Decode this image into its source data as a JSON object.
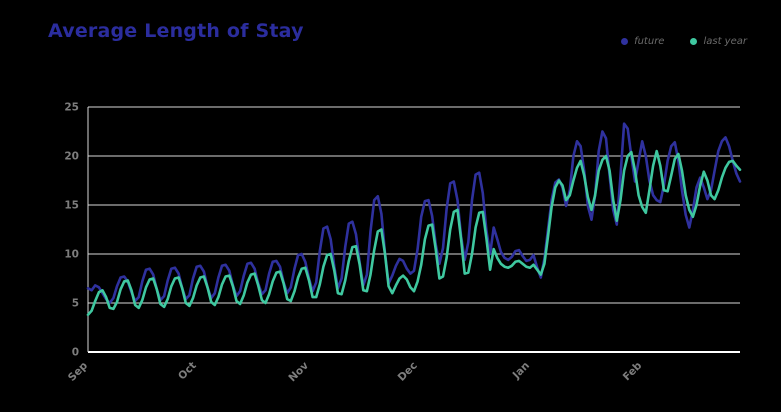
{
  "header": {
    "title": "Average Length of Stay"
  },
  "colors": {
    "background": "#000000",
    "title": "#2b2d9e",
    "grid": "#d9d9d9",
    "axis": "#ffffff",
    "tick_text": "#7d7d7d",
    "legend_text": "#6a6a6a"
  },
  "chart_data": {
    "type": "line",
    "title": "Average Length of Stay",
    "xlabel": "",
    "ylabel": "",
    "x_unit": "daily values, Sep 1 through end of Feb",
    "x_tick_labels": [
      "Sep",
      "Oct",
      "Nov",
      "Dec",
      "Jan",
      "Feb"
    ],
    "x_tick_days": [
      0,
      30,
      61,
      91,
      122,
      153
    ],
    "x_range_days": [
      0,
      180
    ],
    "y_ticks": [
      0,
      5,
      10,
      15,
      20,
      25
    ],
    "ylim": [
      0,
      25
    ],
    "grid": "horizontal",
    "legend_position": "top-right",
    "series": [
      {
        "name": "future",
        "color": "#2f319e",
        "values": [
          6.5,
          6.3,
          6.8,
          6.6,
          6.0,
          5.4,
          5.0,
          5.5,
          6.7,
          7.6,
          7.7,
          7.2,
          6.1,
          5.2,
          5.6,
          7.2,
          8.4,
          8.5,
          7.9,
          6.4,
          5.3,
          5.7,
          7.3,
          8.5,
          8.6,
          8.0,
          6.5,
          5.4,
          5.8,
          7.5,
          8.7,
          8.8,
          8.2,
          6.6,
          5.5,
          6.0,
          7.6,
          8.8,
          8.9,
          8.3,
          6.8,
          5.7,
          6.2,
          7.8,
          9.0,
          9.1,
          8.5,
          7.0,
          5.9,
          6.3,
          8.0,
          9.2,
          9.3,
          8.7,
          7.1,
          6.0,
          6.6,
          8.5,
          9.9,
          10.0,
          9.2,
          7.5,
          6.2,
          7.1,
          10.3,
          12.6,
          12.8,
          11.5,
          8.7,
          6.5,
          7.5,
          10.7,
          13.1,
          13.3,
          12.0,
          9.1,
          6.8,
          7.9,
          12.3,
          15.5,
          15.9,
          14.1,
          10.1,
          7.0,
          7.8,
          8.8,
          9.5,
          9.3,
          8.5,
          8.0,
          8.3,
          10.5,
          13.8,
          15.4,
          15.5,
          13.9,
          11.0,
          9.0,
          10.6,
          14.6,
          17.2,
          17.4,
          15.5,
          11.8,
          9.4,
          11.2,
          15.5,
          18.1,
          18.3,
          16.2,
          12.4,
          10.0,
          12.7,
          11.5,
          10.2,
          9.6,
          9.4,
          9.7,
          10.3,
          10.4,
          9.8,
          9.3,
          9.4,
          9.9,
          8.6,
          7.6,
          9.5,
          12.5,
          15.5,
          17.3,
          17.6,
          16.8,
          14.9,
          16.5,
          20.0,
          21.5,
          21.0,
          18.5,
          14.9,
          13.5,
          16.0,
          20.5,
          22.5,
          21.8,
          18.0,
          14.5,
          13.0,
          18.0,
          23.3,
          22.8,
          20.0,
          17.4,
          19.5,
          21.5,
          20.0,
          17.5,
          16.0,
          15.5,
          15.3,
          17.0,
          19.5,
          21.0,
          21.4,
          19.5,
          16.5,
          14.0,
          12.7,
          14.5,
          16.8,
          17.8,
          16.8,
          15.6,
          16.5,
          18.5,
          20.5,
          21.5,
          21.9,
          21.0,
          19.5,
          18.2,
          17.4
        ]
      },
      {
        "name": "last year",
        "color": "#3fc8a0",
        "values": [
          3.8,
          4.2,
          5.2,
          6.1,
          6.3,
          5.6,
          4.5,
          4.4,
          5.1,
          6.4,
          7.2,
          7.3,
          6.3,
          4.8,
          4.5,
          5.3,
          6.6,
          7.4,
          7.5,
          6.4,
          4.9,
          4.6,
          5.4,
          6.7,
          7.5,
          7.6,
          6.5,
          5.0,
          4.7,
          5.5,
          6.8,
          7.6,
          7.7,
          6.6,
          5.1,
          4.8,
          5.6,
          6.9,
          7.7,
          7.8,
          6.7,
          5.2,
          4.9,
          5.8,
          7.1,
          7.9,
          8.0,
          6.8,
          5.3,
          5.0,
          5.9,
          7.2,
          8.1,
          8.2,
          7.0,
          5.4,
          5.2,
          6.2,
          7.6,
          8.5,
          8.6,
          7.3,
          5.6,
          5.6,
          6.9,
          8.7,
          9.9,
          10.0,
          8.3,
          6.0,
          5.9,
          7.3,
          9.3,
          10.7,
          10.8,
          8.9,
          6.3,
          6.2,
          7.9,
          10.4,
          12.3,
          12.5,
          10.0,
          6.7,
          6.0,
          6.8,
          7.5,
          7.8,
          7.4,
          6.6,
          6.2,
          7.2,
          8.9,
          11.5,
          12.9,
          13.0,
          10.5,
          7.5,
          7.7,
          9.6,
          12.5,
          14.3,
          14.5,
          11.5,
          8.0,
          8.1,
          10.0,
          12.7,
          14.2,
          14.3,
          11.6,
          8.4,
          10.5,
          9.6,
          9.0,
          8.7,
          8.6,
          8.8,
          9.2,
          9.3,
          9.0,
          8.7,
          8.6,
          8.9,
          8.4,
          7.9,
          9.0,
          11.8,
          14.8,
          16.8,
          17.5,
          17.0,
          15.5,
          16.0,
          17.5,
          18.8,
          19.5,
          18.0,
          15.8,
          14.5,
          16.0,
          18.5,
          19.6,
          20.0,
          18.5,
          15.5,
          13.4,
          15.5,
          18.5,
          20.0,
          20.4,
          18.5,
          16.0,
          14.8,
          14.2,
          16.5,
          19.0,
          20.5,
          19.0,
          16.5,
          16.4,
          18.0,
          19.7,
          20.2,
          18.5,
          16.0,
          14.5,
          13.8,
          15.0,
          17.0,
          18.4,
          17.5,
          16.0,
          15.6,
          16.5,
          17.8,
          18.8,
          19.4,
          19.5,
          19.0,
          18.6
        ]
      }
    ]
  }
}
